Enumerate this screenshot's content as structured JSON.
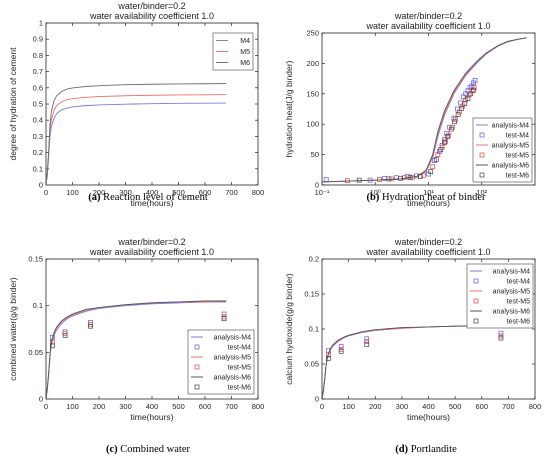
{
  "chart_data": [
    {
      "type": "line",
      "subtitle_lines": [
        "water/binder=0.2",
        "water availability coefficient 1.0"
      ],
      "xlabel": "time(hours)",
      "ylabel": "degree of hydration of cement",
      "xscale": "linear",
      "xlim": [
        0,
        800
      ],
      "ylim": [
        0,
        1
      ],
      "xticks": [
        0,
        100,
        200,
        300,
        400,
        500,
        600,
        700,
        800
      ],
      "yticks": [
        0,
        0.1,
        0.2,
        0.3,
        0.4,
        0.5,
        0.6,
        0.7,
        0.8,
        0.9,
        1
      ],
      "legend_position": "top-right",
      "caption_letter": "(a)",
      "caption_text": "Reaction level of cement",
      "series": [
        {
          "name": "M4",
          "kind": "line",
          "color": "#7a7ae0",
          "x": [
            0,
            5,
            10,
            15,
            20,
            30,
            40,
            60,
            80,
            100,
            150,
            200,
            300,
            400,
            500,
            600,
            680
          ],
          "y": [
            0,
            0.06,
            0.17,
            0.3,
            0.36,
            0.41,
            0.44,
            0.465,
            0.475,
            0.482,
            0.49,
            0.494,
            0.499,
            0.502,
            0.504,
            0.505,
            0.506
          ]
        },
        {
          "name": "M5",
          "kind": "line",
          "color": "#f07070",
          "x": [
            0,
            5,
            10,
            15,
            20,
            30,
            40,
            60,
            80,
            100,
            150,
            200,
            300,
            400,
            500,
            600,
            680
          ],
          "y": [
            0,
            0.07,
            0.19,
            0.33,
            0.4,
            0.46,
            0.49,
            0.515,
            0.527,
            0.533,
            0.541,
            0.546,
            0.551,
            0.554,
            0.556,
            0.557,
            0.558
          ]
        },
        {
          "name": "M6",
          "kind": "line",
          "color": "#6d6d6d",
          "x": [
            0,
            5,
            10,
            15,
            20,
            30,
            40,
            60,
            80,
            100,
            150,
            200,
            300,
            400,
            500,
            600,
            680
          ],
          "y": [
            0,
            0.08,
            0.21,
            0.37,
            0.45,
            0.52,
            0.55,
            0.578,
            0.592,
            0.599,
            0.608,
            0.613,
            0.619,
            0.622,
            0.624,
            0.625,
            0.626
          ]
        }
      ]
    },
    {
      "type": "line",
      "subtitle_lines": [
        "water/binder=0.2",
        "water availability coefficient 1.0"
      ],
      "xlabel": "time(hours)",
      "ylabel": "hydration heat(J/g binder)",
      "xscale": "log",
      "xlim": [
        0.1,
        1000
      ],
      "ylim": [
        0,
        250
      ],
      "xticks": [
        0.1,
        1,
        10,
        100
      ],
      "xtick_labels": [
        "10⁻¹",
        "10⁰",
        "10¹",
        "10²"
      ],
      "yticks": [
        0,
        50,
        100,
        150,
        200,
        250
      ],
      "legend_position": "right",
      "caption_letter": "(b)",
      "caption_text": "Hydration heat of binder",
      "series": [
        {
          "name": "analysis-M4",
          "kind": "line",
          "color": "#7a7ae0",
          "x": [
            0.1,
            1,
            3,
            6,
            9,
            12,
            15,
            20,
            30,
            50,
            80,
            120,
            200,
            300,
            500,
            700
          ],
          "y": [
            5,
            8,
            10,
            14,
            22,
            45,
            80,
            115,
            150,
            180,
            200,
            215,
            228,
            235,
            240,
            242
          ]
        },
        {
          "name": "test-M4",
          "kind": "marker",
          "color": "#5a5ae0",
          "x": [
            0.12,
            0.8,
            1.5,
            2.5,
            4,
            6,
            10,
            13,
            16,
            18,
            20,
            22,
            25,
            30,
            35,
            40,
            45,
            50,
            55,
            60,
            65,
            70,
            75
          ],
          "y": [
            9,
            8,
            11,
            12,
            14,
            15,
            18,
            40,
            55,
            65,
            75,
            85,
            95,
            110,
            125,
            135,
            145,
            150,
            155,
            160,
            163,
            168,
            172
          ]
        },
        {
          "name": "analysis-M5",
          "kind": "line",
          "color": "#f07070",
          "x": [
            0.1,
            1,
            3,
            6,
            9,
            12,
            15,
            20,
            30,
            50,
            80,
            120,
            200,
            300,
            500,
            700
          ],
          "y": [
            5,
            8,
            10,
            14,
            23,
            48,
            84,
            118,
            152,
            182,
            202,
            216,
            229,
            236,
            240,
            242
          ]
        },
        {
          "name": "test-M5",
          "kind": "marker",
          "color": "#e04040",
          "x": [
            0.3,
            1.2,
            2,
            3.5,
            5,
            8,
            12,
            15,
            18,
            21,
            24,
            28,
            32,
            38,
            44,
            50,
            58,
            66,
            72
          ],
          "y": [
            7,
            9,
            10,
            12,
            13,
            16,
            30,
            50,
            62,
            72,
            82,
            95,
            108,
            120,
            130,
            140,
            148,
            155,
            160
          ]
        },
        {
          "name": "analysis-M6",
          "kind": "line",
          "color": "#555555",
          "x": [
            0.1,
            1,
            3,
            6,
            9,
            12,
            15,
            20,
            30,
            50,
            80,
            120,
            200,
            300,
            500,
            700
          ],
          "y": [
            5,
            8,
            10,
            14,
            24,
            50,
            88,
            122,
            155,
            184,
            203,
            217,
            229,
            236,
            240,
            242
          ]
        },
        {
          "name": "test-M6",
          "kind": "marker",
          "color": "#444444",
          "x": [
            0.5,
            1.8,
            3,
            4.5,
            7,
            11,
            14,
            17,
            20,
            23,
            27,
            31,
            36,
            42,
            48,
            55,
            62,
            70
          ],
          "y": [
            8,
            10,
            11,
            12,
            14,
            22,
            42,
            58,
            70,
            80,
            92,
            104,
            116,
            126,
            134,
            142,
            150,
            156
          ]
        }
      ]
    },
    {
      "type": "line",
      "subtitle_lines": [
        "water/binder=0.2",
        "water availability coefficient 1.0"
      ],
      "xlabel": "time(hours)",
      "ylabel": "combined water(g/g binder)",
      "xscale": "linear",
      "xlim": [
        0,
        800
      ],
      "ylim": [
        0,
        0.15
      ],
      "xticks": [
        0,
        100,
        200,
        300,
        400,
        500,
        600,
        700,
        800
      ],
      "yticks": [
        0,
        0.05,
        0.1,
        0.15
      ],
      "legend_position": "bottom-right",
      "caption_letter": "(c)",
      "caption_text": "Combined water",
      "series": [
        {
          "name": "analysis-M4",
          "kind": "line",
          "color": "#7a7ae0",
          "x": [
            0,
            5,
            10,
            15,
            20,
            30,
            40,
            60,
            80,
            100,
            150,
            200,
            300,
            400,
            500,
            600,
            680
          ],
          "y": [
            0,
            0.01,
            0.025,
            0.045,
            0.058,
            0.068,
            0.074,
            0.081,
            0.086,
            0.089,
            0.094,
            0.097,
            0.1,
            0.102,
            0.103,
            0.104,
            0.104
          ]
        },
        {
          "name": "test-M4",
          "kind": "marker",
          "color": "#5a5ae0",
          "x": [
            24,
            72,
            168,
            672
          ],
          "y": [
            0.066,
            0.072,
            0.082,
            0.091
          ]
        },
        {
          "name": "analysis-M5",
          "kind": "line",
          "color": "#f07070",
          "x": [
            0,
            5,
            10,
            15,
            20,
            30,
            40,
            60,
            80,
            100,
            150,
            200,
            300,
            400,
            500,
            600,
            680
          ],
          "y": [
            0,
            0.011,
            0.027,
            0.047,
            0.06,
            0.07,
            0.076,
            0.083,
            0.087,
            0.09,
            0.095,
            0.098,
            0.101,
            0.103,
            0.104,
            0.104,
            0.105
          ]
        },
        {
          "name": "test-M5",
          "kind": "marker",
          "color": "#e04040",
          "x": [
            24,
            72,
            168,
            672
          ],
          "y": [
            0.061,
            0.07,
            0.08,
            0.088
          ]
        },
        {
          "name": "analysis-M6",
          "kind": "line",
          "color": "#555555",
          "x": [
            0,
            5,
            10,
            15,
            20,
            30,
            40,
            60,
            80,
            100,
            150,
            200,
            300,
            400,
            500,
            600,
            680
          ],
          "y": [
            0,
            0.012,
            0.028,
            0.048,
            0.061,
            0.071,
            0.077,
            0.084,
            0.088,
            0.091,
            0.096,
            0.098,
            0.101,
            0.103,
            0.104,
            0.105,
            0.105
          ]
        },
        {
          "name": "test-M6",
          "kind": "marker",
          "color": "#444444",
          "x": [
            24,
            72,
            168,
            672
          ],
          "y": [
            0.057,
            0.068,
            0.078,
            0.086
          ]
        }
      ]
    },
    {
      "type": "line",
      "subtitle_lines": [
        "water/binder=0.2",
        "water availability coefficient 1.0"
      ],
      "xlabel": "time(hours)",
      "ylabel": "calcium hydroxide(g/g binder)",
      "xscale": "linear",
      "xlim": [
        0,
        800
      ],
      "ylim": [
        0,
        0.2
      ],
      "xticks": [
        0,
        100,
        200,
        300,
        400,
        500,
        600,
        700,
        800
      ],
      "yticks": [
        0,
        0.05,
        0.1,
        0.15,
        0.2
      ],
      "legend_position": "top-right",
      "caption_letter": "(d)",
      "caption_text": "Portlandite",
      "series": [
        {
          "name": "analysis-M4",
          "kind": "line",
          "color": "#7a7ae0",
          "x": [
            0,
            5,
            10,
            15,
            20,
            30,
            40,
            60,
            80,
            100,
            150,
            200,
            300,
            400,
            500,
            600,
            680
          ],
          "y": [
            0,
            0.01,
            0.026,
            0.046,
            0.058,
            0.069,
            0.075,
            0.082,
            0.087,
            0.09,
            0.095,
            0.098,
            0.101,
            0.103,
            0.104,
            0.104,
            0.105
          ]
        },
        {
          "name": "test-M4",
          "kind": "marker",
          "color": "#5a5ae0",
          "x": [
            24,
            72,
            168,
            672
          ],
          "y": [
            0.069,
            0.075,
            0.086,
            0.094
          ]
        },
        {
          "name": "analysis-M5",
          "kind": "line",
          "color": "#f07070",
          "x": [
            0,
            5,
            10,
            15,
            20,
            30,
            40,
            60,
            80,
            100,
            150,
            200,
            300,
            400,
            500,
            600,
            680
          ],
          "y": [
            0,
            0.011,
            0.027,
            0.047,
            0.059,
            0.07,
            0.076,
            0.083,
            0.088,
            0.091,
            0.096,
            0.098,
            0.101,
            0.103,
            0.104,
            0.105,
            0.105
          ]
        },
        {
          "name": "test-M5",
          "kind": "marker",
          "color": "#e04040",
          "x": [
            24,
            72,
            168,
            672
          ],
          "y": [
            0.063,
            0.071,
            0.082,
            0.09
          ]
        },
        {
          "name": "analysis-M6",
          "kind": "line",
          "color": "#555555",
          "x": [
            0,
            5,
            10,
            15,
            20,
            30,
            40,
            60,
            80,
            100,
            150,
            200,
            300,
            400,
            500,
            600,
            680
          ],
          "y": [
            0,
            0.012,
            0.028,
            0.048,
            0.06,
            0.071,
            0.077,
            0.084,
            0.088,
            0.091,
            0.096,
            0.099,
            0.102,
            0.103,
            0.104,
            0.105,
            0.105
          ]
        },
        {
          "name": "test-M6",
          "kind": "marker",
          "color": "#444444",
          "x": [
            24,
            72,
            168,
            672
          ],
          "y": [
            0.058,
            0.068,
            0.078,
            0.087
          ]
        }
      ]
    }
  ]
}
